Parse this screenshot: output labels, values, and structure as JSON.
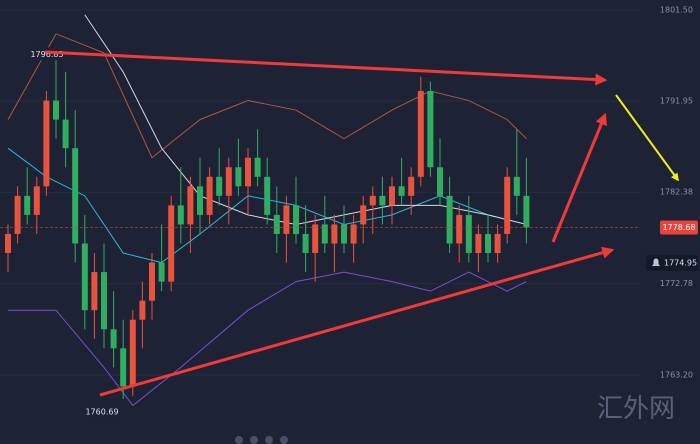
{
  "chart_data": {
    "type": "candlestick",
    "ylim": [
      1755.96,
      1802.55
    ],
    "yticks": [
      {
        "value": 1801.5,
        "label": "1801.50"
      },
      {
        "value": 1791.95,
        "label": "1791.95"
      },
      {
        "value": 1782.38,
        "label": "1782.38"
      },
      {
        "value": 1772.78,
        "label": "1772.78"
      },
      {
        "value": 1763.2,
        "label": "1763.20"
      }
    ],
    "grid": true,
    "up_color": "#e8533d",
    "down_color": "#2fae5f",
    "ohlc": [
      [
        1776,
        1779,
        1774,
        1778
      ],
      [
        1778,
        1783,
        1777,
        1782
      ],
      [
        1782,
        1785,
        1779,
        1780
      ],
      [
        1780,
        1784,
        1778,
        1783
      ],
      [
        1783,
        1793,
        1782,
        1792
      ],
      [
        1792,
        1796.85,
        1788,
        1790
      ],
      [
        1790,
        1795,
        1785,
        1787
      ],
      [
        1787,
        1791,
        1775,
        1777
      ],
      [
        1777,
        1780,
        1768,
        1770
      ],
      [
        1770,
        1776,
        1767,
        1774
      ],
      [
        1774,
        1777,
        1766,
        1768
      ],
      [
        1768,
        1772,
        1764,
        1766
      ],
      [
        1766,
        1769,
        1760.69,
        1762
      ],
      [
        1762,
        1770,
        1761,
        1769
      ],
      [
        1769,
        1773,
        1766,
        1771
      ],
      [
        1771,
        1776,
        1769,
        1775
      ],
      [
        1775,
        1779,
        1772,
        1773
      ],
      [
        1773,
        1782,
        1772,
        1781
      ],
      [
        1781,
        1785,
        1777,
        1779
      ],
      [
        1779,
        1784,
        1776,
        1783
      ],
      [
        1783,
        1786,
        1778,
        1780
      ],
      [
        1780,
        1785,
        1779,
        1784
      ],
      [
        1784,
        1787,
        1781,
        1782
      ],
      [
        1782,
        1786,
        1779,
        1785
      ],
      [
        1785,
        1788,
        1782,
        1783
      ],
      [
        1783,
        1787,
        1780,
        1786
      ],
      [
        1786,
        1789,
        1783,
        1784
      ],
      [
        1784,
        1786,
        1779,
        1780
      ],
      [
        1780,
        1783,
        1776,
        1778
      ],
      [
        1778,
        1782,
        1775,
        1781
      ],
      [
        1781,
        1784,
        1777,
        1778
      ],
      [
        1778,
        1781,
        1774,
        1776
      ],
      [
        1776,
        1780,
        1773,
        1779
      ],
      [
        1779,
        1782,
        1776,
        1777
      ],
      [
        1777,
        1780,
        1774,
        1779
      ],
      [
        1779,
        1781,
        1776,
        1777
      ],
      [
        1777,
        1780,
        1775,
        1779
      ],
      [
        1779,
        1782,
        1777,
        1781
      ],
      [
        1781,
        1783,
        1778,
        1782
      ],
      [
        1782,
        1784,
        1779,
        1781
      ],
      [
        1781,
        1784,
        1779,
        1783
      ],
      [
        1783,
        1786,
        1781,
        1782
      ],
      [
        1782,
        1785,
        1780,
        1784
      ],
      [
        1784,
        1794.5,
        1783,
        1793
      ],
      [
        1793,
        1794,
        1784,
        1785
      ],
      [
        1785,
        1788,
        1781,
        1782
      ],
      [
        1782,
        1784,
        1776,
        1777
      ],
      [
        1777,
        1781,
        1775,
        1780
      ],
      [
        1780,
        1782,
        1775,
        1776
      ],
      [
        1776,
        1779,
        1774,
        1778
      ],
      [
        1778,
        1780,
        1775,
        1776
      ],
      [
        1776,
        1779,
        1775,
        1778
      ],
      [
        1778,
        1785,
        1777,
        1784
      ],
      [
        1784,
        1789,
        1780,
        1782
      ],
      [
        1782,
        1786,
        1777,
        1778.68
      ]
    ],
    "lines": [
      {
        "color": "#b0573e",
        "x": [
          0,
          5,
          10,
          15,
          20,
          25,
          30,
          35,
          40,
          44,
          48,
          52,
          54
        ],
        "values": [
          1790,
          1799,
          1797,
          1786,
          1790,
          1792,
          1791,
          1788,
          1791,
          1793,
          1792,
          1790,
          1788
        ]
      },
      {
        "color": "#7a4fd0",
        "x": [
          0,
          5,
          10,
          13,
          18,
          25,
          30,
          35,
          40,
          44,
          48,
          52,
          54
        ],
        "values": [
          1770,
          1770,
          1764,
          1760,
          1764,
          1770,
          1773,
          1774,
          1773,
          1772,
          1774,
          1772,
          1773
        ]
      },
      {
        "color": "#2bb8d6",
        "x": [
          0,
          4,
          8,
          12,
          16,
          20,
          25,
          30,
          35,
          40,
          45,
          50,
          54
        ],
        "values": [
          1787,
          1784,
          1782,
          1776,
          1775,
          1778,
          1782,
          1781,
          1779,
          1780,
          1782,
          1780,
          1779
        ]
      },
      {
        "color": "#d8d8e0",
        "x": [
          8,
          12,
          16,
          20,
          25,
          30,
          35,
          40,
          45,
          50,
          54
        ],
        "values": [
          1801,
          1795,
          1787,
          1782,
          1780,
          1779,
          1780,
          1781,
          1781,
          1780,
          1779
        ]
      }
    ],
    "high_label": "1796.85",
    "high_value": 1796.85,
    "low_label": "1760.69",
    "low_value": 1760.69,
    "last_price": "1778.68",
    "last_value": 1778.68,
    "alert_price": "1774.95",
    "alert_value": 1774.95,
    "watermark": "汇外网"
  }
}
